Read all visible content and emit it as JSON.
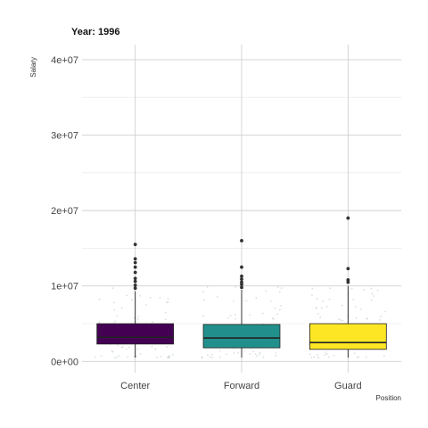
{
  "chart_data": {
    "type": "box",
    "title": "Year: 1996",
    "xlabel": "Position",
    "ylabel": "Salary",
    "categories": [
      "Center",
      "Forward",
      "Guard"
    ],
    "colors": [
      "#440154",
      "#21908C",
      "#FDE725"
    ],
    "ylim": [
      -1500000,
      42000000
    ],
    "yticks": [
      0,
      10000000,
      20000000,
      30000000,
      40000000
    ],
    "ytick_labels": [
      "0e+00",
      "1e+07",
      "2e+07",
      "3e+07",
      "4e+07"
    ],
    "grid": true,
    "legend": "none",
    "boxes": [
      {
        "category": "Center",
        "q1": 2300000,
        "median": 3200000,
        "q3": 5000000,
        "whisker_low": 500000,
        "whisker_high": 9300000,
        "outliers": [
          9700000,
          10100000,
          10600000,
          11000000,
          11800000,
          12500000,
          13100000,
          13600000,
          15500000
        ]
      },
      {
        "category": "Forward",
        "q1": 1800000,
        "median": 3100000,
        "q3": 4900000,
        "whisker_low": 500000,
        "whisker_high": 9500000,
        "outliers": [
          9800000,
          10200000,
          10500000,
          10900000,
          11300000,
          12500000,
          16000000
        ]
      },
      {
        "category": "Guard",
        "q1": 1600000,
        "median": 2500000,
        "q3": 5000000,
        "whisker_low": 500000,
        "whisker_high": 10000000,
        "outliers": [
          10500000,
          10800000,
          12300000,
          19000000
        ]
      }
    ]
  }
}
